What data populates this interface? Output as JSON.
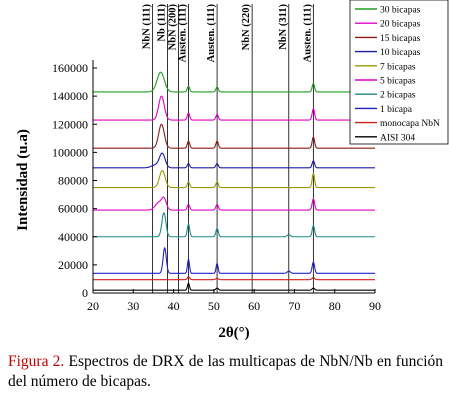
{
  "chart_data": {
    "type": "line",
    "xlabel": "2θ(°)",
    "ylabel": "Intensidad (u.a)",
    "xlim": [
      20,
      90
    ],
    "ylim": [
      0,
      160000
    ],
    "xticks": [
      "20",
      "30",
      "40",
      "50",
      "60",
      "70",
      "80",
      "90"
    ],
    "yticks": [
      "0",
      "20000",
      "40000",
      "60000",
      "80000",
      "100000",
      "120000",
      "140000",
      "160000"
    ],
    "legend_position": "top-right",
    "grid": false,
    "reference_lines": [
      {
        "x": 34.8,
        "label": "NbN (111)"
      },
      {
        "x": 38.5,
        "label": "Nb (111)"
      },
      {
        "x": 41.2,
        "label": "NbN (200)"
      },
      {
        "x": 43.7,
        "label": "Austen. (111)"
      },
      {
        "x": 50.8,
        "label": "Austen. (111)"
      },
      {
        "x": 59.5,
        "label": "NbN (220)"
      },
      {
        "x": 68.6,
        "label": "NbN (311)"
      },
      {
        "x": 74.7,
        "label": "Austen. (111)"
      }
    ],
    "series": [
      {
        "name": "30 bicapas",
        "color": "#1e9e1e",
        "baseline": 143000,
        "peaks": [
          [
            36.8,
            14000,
            0.9
          ],
          [
            43.7,
            4000,
            0.3
          ],
          [
            50.8,
            3500,
            0.3
          ],
          [
            74.7,
            6000,
            0.3
          ]
        ]
      },
      {
        "name": "20 bicapas",
        "color": "#e000c8",
        "baseline": 123000,
        "peaks": [
          [
            37.0,
            17000,
            0.7
          ],
          [
            43.7,
            5000,
            0.3
          ],
          [
            50.8,
            4000,
            0.3
          ],
          [
            74.7,
            8000,
            0.3
          ]
        ]
      },
      {
        "name": "15 bicapas",
        "color": "#8b1a1a",
        "baseline": 103000,
        "peaks": [
          [
            37.0,
            17000,
            0.7
          ],
          [
            43.7,
            5000,
            0.3
          ],
          [
            50.8,
            5000,
            0.3
          ],
          [
            74.7,
            8000,
            0.3
          ]
        ]
      },
      {
        "name": "10 bicapas",
        "color": "#1c1ca0",
        "baseline": 89000,
        "peaks": [
          [
            35.5,
            2000,
            1.0
          ],
          [
            37.2,
            10000,
            0.7
          ],
          [
            43.7,
            3000,
            0.3
          ],
          [
            50.8,
            3000,
            0.3
          ],
          [
            74.7,
            5000,
            0.3
          ]
        ]
      },
      {
        "name": "7 bicapas",
        "color": "#9a9a00",
        "baseline": 75000,
        "peaks": [
          [
            37.2,
            12000,
            0.7
          ],
          [
            43.7,
            4000,
            0.3
          ],
          [
            50.8,
            4000,
            0.3
          ],
          [
            74.7,
            10000,
            0.3
          ]
        ]
      },
      {
        "name": "5 bicapas",
        "color": "#e000c8",
        "baseline": 59000,
        "peaks": [
          [
            36.2,
            5000,
            0.8
          ],
          [
            37.6,
            8000,
            0.6
          ],
          [
            43.7,
            4000,
            0.3
          ],
          [
            50.8,
            4000,
            0.3
          ],
          [
            74.7,
            8000,
            0.3
          ]
        ]
      },
      {
        "name": "2 bicapas",
        "color": "#1e8a8a",
        "baseline": 40000,
        "peaks": [
          [
            37.6,
            17000,
            0.5
          ],
          [
            43.7,
            9000,
            0.3
          ],
          [
            50.8,
            6000,
            0.3
          ],
          [
            68.6,
            1500,
            0.4
          ],
          [
            74.7,
            8000,
            0.3
          ]
        ]
      },
      {
        "name": "1 bicapa",
        "color": "#2020c8",
        "baseline": 14000,
        "peaks": [
          [
            37.8,
            18000,
            0.4
          ],
          [
            43.7,
            10000,
            0.25
          ],
          [
            50.8,
            7000,
            0.25
          ],
          [
            68.6,
            1500,
            0.4
          ],
          [
            74.7,
            8000,
            0.3
          ]
        ]
      },
      {
        "name": "monocapa NbN",
        "color": "#d02020",
        "baseline": 9500,
        "peaks": [
          [
            43.7,
            2000,
            0.3
          ],
          [
            50.8,
            1000,
            0.3
          ],
          [
            74.7,
            1500,
            0.3
          ]
        ]
      },
      {
        "name": "AISI 304",
        "color": "#000000",
        "baseline": 2000,
        "peaks": [
          [
            43.7,
            5000,
            0.25
          ],
          [
            50.8,
            1500,
            0.3
          ],
          [
            74.7,
            1500,
            0.3
          ]
        ]
      }
    ]
  },
  "caption": {
    "figure_label": "Figura 2.",
    "text": "Espectros de DRX de las multicapas de NbN/Nb en función del número de bicapas."
  }
}
